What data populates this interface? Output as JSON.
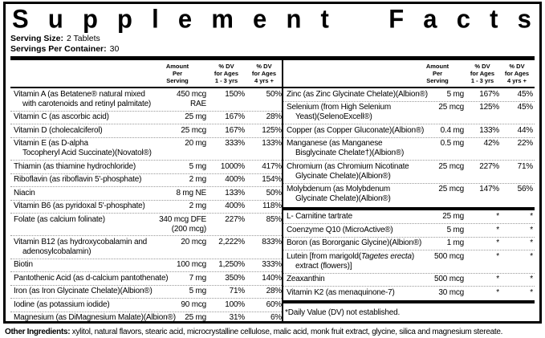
{
  "header": {
    "title": "Supplement Facts",
    "serving_size_label": "Serving Size:",
    "serving_size_value": "2 Tablets",
    "servings_per_container_label": "Servings Per Container:",
    "servings_per_container_value": "30"
  },
  "columns": {
    "amount": "Amount\nPer\nServing",
    "dv_1_3": "% DV\nfor Ages\n1 - 3 yrs",
    "dv_4plus": "% DV\nfor Ages\n4 yrs +"
  },
  "left_rows": [
    {
      "name": "Vitamin A (as Betatene® natural mixed\nwith carotenoids and retinyl palmitate)",
      "amount": "450 mcg\nRAE",
      "dv13": "150%",
      "dv4": "50%"
    },
    {
      "name": "Vitamin C (as ascorbic acid)",
      "amount": "25 mg",
      "dv13": "167%",
      "dv4": "28%"
    },
    {
      "name": "Vitamin D (cholecalciferol)",
      "amount": "25 mcg",
      "dv13": "167%",
      "dv4": "125%"
    },
    {
      "name": "Vitamin E (as D-alpha\nTocopheryl Acid Succinate)(Novatol®)",
      "amount": "20 mg",
      "dv13": "333%",
      "dv4": "133%"
    },
    {
      "name": "Thiamin (as thiamine hydrochloride)",
      "amount": "5 mg",
      "dv13": "1000%",
      "dv4": "417%"
    },
    {
      "name": "Riboflavin (as riboflavin 5'-phosphate)",
      "amount": "2 mg",
      "dv13": "400%",
      "dv4": "154%"
    },
    {
      "name": "Niacin",
      "amount": "8 mg NE",
      "dv13": "133%",
      "dv4": "50%"
    },
    {
      "name": "Vitamin B6 (as pyridoxal 5'-phosphate)",
      "amount": "2 mg",
      "dv13": "400%",
      "dv4": "118%"
    },
    {
      "name": "Folate (as calcium folinate)",
      "amount": "340 mcg DFE\n(200 mcg)",
      "dv13": "227%",
      "dv4": "85%"
    },
    {
      "name": "Vitamin B12 (as hydroxycobalamin and\nadenosylcobalamin)",
      "amount": "20 mcg",
      "dv13": "2,222%",
      "dv4": "833%"
    },
    {
      "name": "Biotin",
      "amount": "100 mcg",
      "dv13": "1,250%",
      "dv4": "333%"
    },
    {
      "name": "Pantothenic Acid (as d-calcium pantothenate)",
      "amount": "7 mg",
      "dv13": "350%",
      "dv4": "140%"
    },
    {
      "name": "Iron (as Iron Glycinate Chelate)(Albion®)",
      "amount": "5 mg",
      "dv13": "71%",
      "dv4": "28%"
    },
    {
      "name": "Iodine (as potassium iodide)",
      "amount": "90 mcg",
      "dv13": "100%",
      "dv4": "60%"
    },
    {
      "name": "Magnesium (as DiMagnesium Malate)(Albion®)",
      "amount": "25 mg",
      "dv13": "31%",
      "dv4": "6%"
    }
  ],
  "right_rows_dv": [
    {
      "name": "Zinc (as Zinc Glycinate Chelate)(Albion®)",
      "amount": "5 mg",
      "dv13": "167%",
      "dv4": "45%"
    },
    {
      "name": "Selenium (from High Selenium\nYeast)(SelenoExcell®)",
      "amount": "25 mcg",
      "dv13": "125%",
      "dv4": "45%"
    },
    {
      "name": "Copper (as Copper Gluconate)(Albion®)",
      "amount": "0.4 mg",
      "dv13": "133%",
      "dv4": "44%"
    },
    {
      "name": "Manganese (as Manganese\nBisglycinate Chelate†)(Albion®)",
      "amount": "0.5 mg",
      "dv13": "42%",
      "dv4": "22%"
    },
    {
      "name": "Chromium (as Chromium Nicotinate\nGlycinate Chelate)(Albion®)",
      "amount": "25 mcg",
      "dv13": "227%",
      "dv4": "71%"
    },
    {
      "name": "Molybdenum (as Molybdenum\nGlycinate Chelate)(Albion®)",
      "amount": "25 mcg",
      "dv13": "147%",
      "dv4": "56%"
    }
  ],
  "right_rows_nodv": [
    {
      "name": "L- Carnitine tartrate",
      "amount": "25 mg",
      "dv13": "*",
      "dv4": "*"
    },
    {
      "name": "Coenzyme Q10 (MicroActive®)",
      "amount": "5 mg",
      "dv13": "*",
      "dv4": "*"
    },
    {
      "name": "Boron (as Bororganic Glycine)(Albion®)",
      "amount": "1 mg",
      "dv13": "*",
      "dv4": "*"
    },
    {
      "name": "Lutein [from marigold(_Tagetes erecta_)\nextract (flowers)]",
      "amount": "500 mcg",
      "dv13": "*",
      "dv4": "*"
    },
    {
      "name": "Zeaxanthin",
      "amount": "500 mcg",
      "dv13": "*",
      "dv4": "*"
    },
    {
      "name": "Vitamin K2 (as menaquinone-7)",
      "amount": "30 mcg",
      "dv13": "*",
      "dv4": "*"
    }
  ],
  "footnote": "*Daily Value (DV) not established.",
  "other_ingredients": {
    "label": "Other Ingredients:",
    "text": " xylitol, natural flavors, stearic acid, microcrystalline cellulose, malic acid, monk fruit extract, glycine, silica and magnesium stereate."
  },
  "colors": {
    "border": "#000000",
    "separator": "#999999",
    "background": "#ffffff",
    "text": "#000000"
  }
}
